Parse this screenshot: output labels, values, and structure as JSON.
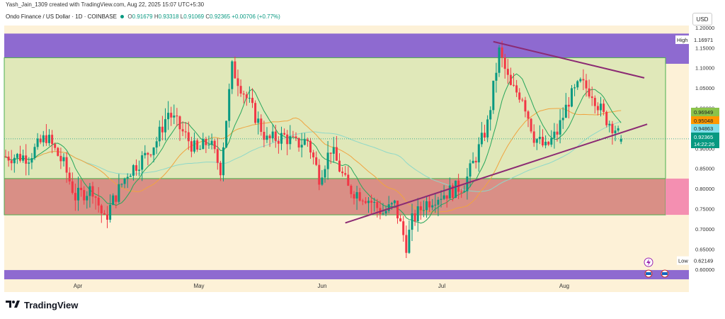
{
  "header": {
    "author_line": "Yash_Jain_1309 created with TradingView.com, Aug 22, 2025 15:07 UTC+5:30",
    "symbol": "Ondo Finance / US Dollar · 1D · COINBASE",
    "ohlc": [
      {
        "k": "O",
        "v": "0.91679"
      },
      {
        "k": "H",
        "v": "0.93318"
      },
      {
        "k": "L",
        "v": "0.91069"
      },
      {
        "k": "C",
        "v": "0.92365"
      }
    ],
    "change": "+0.00706 (+0.77%)"
  },
  "currency_label": "USD",
  "watermark": "TradingView",
  "colors": {
    "up": "#089981",
    "down": "#f23645",
    "background": "#fdf1d7",
    "top_band": "#8e6ad0",
    "green_zone": "#e0e8b9",
    "red_zone": "#d98f86",
    "trendline": "#8b2a73",
    "ma_fast": "#26a65b",
    "ma_slow": "#f0a440",
    "ma_long": "#8ed8c8"
  },
  "chart_data": {
    "type": "candlestick",
    "symbol": "Ondo Finance / US Dollar",
    "interval": "1D",
    "ylim": [
      0.575,
      1.205
    ],
    "y_ticks": [
      "0.60000",
      "0.65000",
      "0.70000",
      "0.75000",
      "0.80000",
      "0.85000",
      "0.90000",
      "0.95000",
      "1.00000",
      "1.05000",
      "1.10000",
      "1.15000",
      "1.20000"
    ],
    "x_ticks": [
      "Apr",
      "May",
      "Jun",
      "Jul",
      "Aug"
    ],
    "zones": {
      "top_band": [
        1.11,
        1.185
      ],
      "green": [
        0.825,
        1.125
      ],
      "red": [
        0.735,
        0.825
      ],
      "bottom_band": [
        0.575,
        0.598
      ]
    },
    "trendlines": [
      {
        "from": {
          "day": 168,
          "y": 1.165
        },
        "to": {
          "day": 220,
          "y": 1.075
        }
      },
      {
        "from": {
          "day": 117,
          "y": 0.715
        },
        "to": {
          "day": 221,
          "y": 0.96
        }
      }
    ],
    "price_labels": [
      {
        "label": "High",
        "value": "1.16971"
      },
      {
        "label": "",
        "value": "0.96949"
      },
      {
        "label": "",
        "value": "0.95048"
      },
      {
        "label": "",
        "value": "0.94863"
      },
      {
        "label": "",
        "value": "0.92365"
      },
      {
        "label": "",
        "value": "14:22:26"
      },
      {
        "label": "Low",
        "value": "0.62149"
      }
    ],
    "last_price": 0.92365,
    "high": 1.16971,
    "low": 0.62149
  }
}
